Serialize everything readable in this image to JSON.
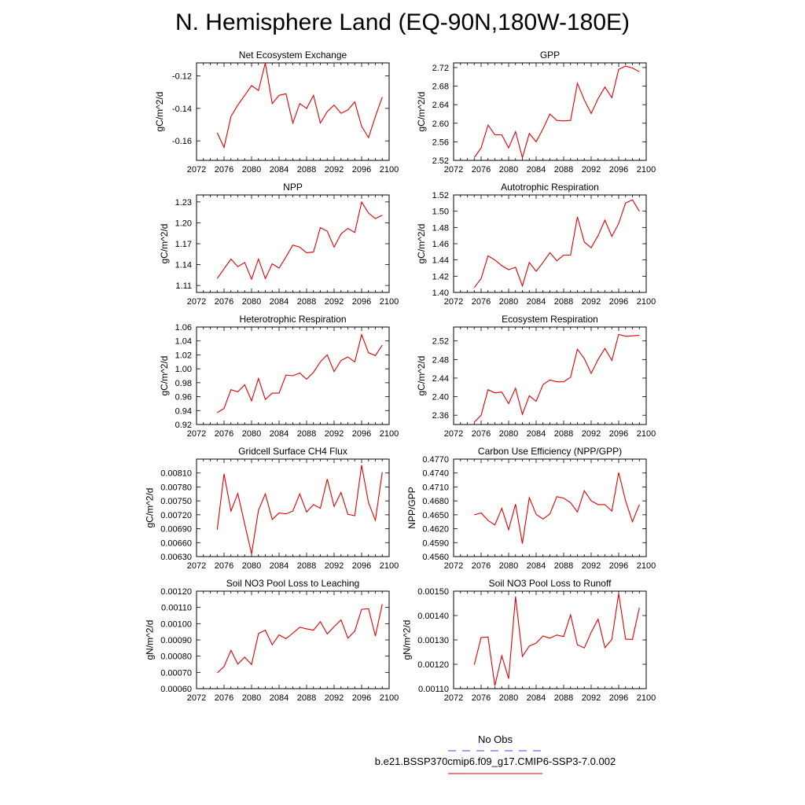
{
  "figure": {
    "title": "N. Hemisphere Land (EQ-90N,180W-180E)"
  },
  "legend": {
    "obs_label": "No Obs",
    "obs_color": "#4444dd",
    "case_label": "b.e21.BSSP370cmip6.f09_g17.CMIP6-SSP3-7.0.002",
    "case_color": "#e00000"
  },
  "chart_data": [
    {
      "type": "line",
      "title": "Net Ecosystem Exchange",
      "ylabel": "gC/m^2/d",
      "xlim": [
        2072,
        2100
      ],
      "xticks": [
        "2072",
        "2076",
        "2080",
        "2084",
        "2088",
        "2092",
        "2096",
        "2100"
      ],
      "ylim": [
        -0.172,
        -0.112
      ],
      "yticks": [
        "-0.12",
        "-0.14",
        "-0.16"
      ],
      "ytick_values": [
        -0.12,
        -0.14,
        -0.16
      ],
      "series": [
        {
          "color": "#e00000",
          "x": [
            2075,
            2076,
            2077,
            2078,
            2079,
            2080,
            2081,
            2082,
            2083,
            2084,
            2085,
            2086,
            2087,
            2088,
            2089,
            2090,
            2091,
            2092,
            2093,
            2094,
            2095,
            2096,
            2097,
            2098,
            2099
          ],
          "y": [
            -0.155,
            -0.164,
            -0.145,
            -0.138,
            -0.132,
            -0.126,
            -0.129,
            -0.112,
            -0.137,
            -0.132,
            -0.131,
            -0.149,
            -0.137,
            -0.14,
            -0.132,
            -0.149,
            -0.142,
            -0.138,
            -0.143,
            -0.141,
            -0.136,
            -0.151,
            -0.158,
            -0.145,
            -0.133
          ]
        }
      ]
    },
    {
      "type": "line",
      "title": "GPP",
      "ylabel": "gC/m^2/d",
      "xlim": [
        2072,
        2100
      ],
      "xticks": [
        "2072",
        "2076",
        "2080",
        "2084",
        "2088",
        "2092",
        "2096",
        "2100"
      ],
      "ylim": [
        2.52,
        2.73
      ],
      "yticks": [
        "2.52",
        "2.56",
        "2.60",
        "2.64",
        "2.68",
        "2.72"
      ],
      "ytick_values": [
        2.52,
        2.56,
        2.6,
        2.64,
        2.68,
        2.72
      ],
      "series": [
        {
          "color": "#e00000",
          "x": [
            2075,
            2076,
            2077,
            2078,
            2079,
            2080,
            2081,
            2082,
            2083,
            2084,
            2085,
            2086,
            2087,
            2088,
            2089,
            2090,
            2091,
            2092,
            2093,
            2094,
            2095,
            2096,
            2097,
            2098,
            2099
          ],
          "y": [
            2.526,
            2.547,
            2.596,
            2.575,
            2.575,
            2.547,
            2.582,
            2.526,
            2.578,
            2.56,
            2.588,
            2.62,
            2.606,
            2.605,
            2.606,
            2.686,
            2.65,
            2.621,
            2.653,
            2.678,
            2.655,
            2.716,
            2.723,
            2.719,
            2.711
          ]
        }
      ]
    },
    {
      "type": "line",
      "title": "NPP",
      "ylabel": "gC/m^2/d",
      "xlim": [
        2072,
        2100
      ],
      "xticks": [
        "2072",
        "2076",
        "2080",
        "2084",
        "2088",
        "2092",
        "2096",
        "2100"
      ],
      "ylim": [
        1.1,
        1.24
      ],
      "yticks": [
        "1.11",
        "1.14",
        "1.17",
        "1.20",
        "1.23"
      ],
      "ytick_values": [
        1.11,
        1.14,
        1.17,
        1.2,
        1.23
      ],
      "series": [
        {
          "color": "#e00000",
          "x": [
            2075,
            2076,
            2077,
            2078,
            2079,
            2080,
            2081,
            2082,
            2083,
            2084,
            2085,
            2086,
            2087,
            2088,
            2089,
            2090,
            2091,
            2092,
            2093,
            2094,
            2095,
            2096,
            2097,
            2098,
            2099
          ],
          "y": [
            1.12,
            1.134,
            1.148,
            1.137,
            1.143,
            1.119,
            1.148,
            1.12,
            1.141,
            1.135,
            1.151,
            1.168,
            1.165,
            1.157,
            1.158,
            1.193,
            1.188,
            1.165,
            1.184,
            1.192,
            1.186,
            1.23,
            1.214,
            1.206,
            1.211
          ]
        }
      ]
    },
    {
      "type": "line",
      "title": "Autotrophic Respiration",
      "ylabel": "gC/m^2/d",
      "xlim": [
        2072,
        2100
      ],
      "xticks": [
        "2072",
        "2076",
        "2080",
        "2084",
        "2088",
        "2092",
        "2096",
        "2100"
      ],
      "ylim": [
        1.4,
        1.52
      ],
      "yticks": [
        "1.40",
        "1.42",
        "1.44",
        "1.46",
        "1.48",
        "1.50",
        "1.52"
      ],
      "ytick_values": [
        1.4,
        1.42,
        1.44,
        1.46,
        1.48,
        1.5,
        1.52
      ],
      "series": [
        {
          "color": "#e00000",
          "x": [
            2075,
            2076,
            2077,
            2078,
            2079,
            2080,
            2081,
            2082,
            2083,
            2084,
            2085,
            2086,
            2087,
            2088,
            2089,
            2090,
            2091,
            2092,
            2093,
            2094,
            2095,
            2096,
            2097,
            2098,
            2099
          ],
          "y": [
            1.406,
            1.417,
            1.445,
            1.44,
            1.433,
            1.428,
            1.431,
            1.408,
            1.437,
            1.426,
            1.437,
            1.449,
            1.439,
            1.446,
            1.446,
            1.493,
            1.462,
            1.455,
            1.47,
            1.489,
            1.469,
            1.485,
            1.51,
            1.514,
            1.5
          ]
        }
      ]
    },
    {
      "type": "line",
      "title": "Heterotrophic Respiration",
      "ylabel": "gC/m^2/d",
      "xlim": [
        2072,
        2100
      ],
      "xticks": [
        "2072",
        "2076",
        "2080",
        "2084",
        "2088",
        "2092",
        "2096",
        "2100"
      ],
      "ylim": [
        0.92,
        1.06
      ],
      "yticks": [
        "0.92",
        "0.94",
        "0.96",
        "0.98",
        "1.00",
        "1.02",
        "1.04",
        "1.06"
      ],
      "ytick_values": [
        0.92,
        0.94,
        0.96,
        0.98,
        1.0,
        1.02,
        1.04,
        1.06
      ],
      "series": [
        {
          "color": "#e00000",
          "x": [
            2075,
            2076,
            2077,
            2078,
            2079,
            2080,
            2081,
            2082,
            2083,
            2084,
            2085,
            2086,
            2087,
            2088,
            2089,
            2090,
            2091,
            2092,
            2093,
            2094,
            2095,
            2096,
            2097,
            2098,
            2099
          ],
          "y": [
            0.937,
            0.943,
            0.97,
            0.967,
            0.977,
            0.954,
            0.986,
            0.956,
            0.965,
            0.965,
            0.991,
            0.99,
            0.994,
            0.985,
            0.995,
            1.01,
            1.02,
            0.996,
            1.012,
            1.017,
            1.01,
            1.049,
            1.023,
            1.019,
            1.034
          ]
        }
      ]
    },
    {
      "type": "line",
      "title": "Ecosystem Respiration",
      "ylabel": "gC/m^2/d",
      "xlim": [
        2072,
        2100
      ],
      "xticks": [
        "2072",
        "2076",
        "2080",
        "2084",
        "2088",
        "2092",
        "2096",
        "2100"
      ],
      "ylim": [
        2.34,
        2.55
      ],
      "yticks": [
        "2.36",
        "2.40",
        "2.44",
        "2.48",
        "2.52"
      ],
      "ytick_values": [
        2.36,
        2.4,
        2.44,
        2.48,
        2.52
      ],
      "series": [
        {
          "color": "#e00000",
          "x": [
            2075,
            2076,
            2077,
            2078,
            2079,
            2080,
            2081,
            2082,
            2083,
            2084,
            2085,
            2086,
            2087,
            2088,
            2089,
            2090,
            2091,
            2092,
            2093,
            2094,
            2095,
            2096,
            2097,
            2098,
            2099
          ],
          "y": [
            2.345,
            2.36,
            2.415,
            2.408,
            2.41,
            2.385,
            2.418,
            2.362,
            2.402,
            2.39,
            2.426,
            2.436,
            2.432,
            2.432,
            2.442,
            2.502,
            2.482,
            2.45,
            2.48,
            2.504,
            2.478,
            2.534,
            2.53,
            2.531,
            2.532
          ]
        }
      ]
    },
    {
      "type": "line",
      "title": "Gridcell Surface CH4 Flux",
      "ylabel": "gC/m^2/d",
      "xlim": [
        2072,
        2100
      ],
      "xticks": [
        "2072",
        "2076",
        "2080",
        "2084",
        "2088",
        "2092",
        "2096",
        "2100"
      ],
      "ylim": [
        0.0063,
        0.0084
      ],
      "yticks": [
        "0.00630",
        "0.00660",
        "0.00690",
        "0.00720",
        "0.00750",
        "0.00780",
        "0.00810"
      ],
      "ytick_values": [
        0.0063,
        0.0066,
        0.0069,
        0.0072,
        0.0075,
        0.0078,
        0.0081
      ],
      "series": [
        {
          "color": "#e00000",
          "x": [
            2075,
            2076,
            2077,
            2078,
            2079,
            2080,
            2081,
            2082,
            2083,
            2084,
            2085,
            2086,
            2087,
            2088,
            2089,
            2090,
            2091,
            2092,
            2093,
            2094,
            2095,
            2096,
            2097,
            2098,
            2099
          ],
          "y": [
            0.00688,
            0.00808,
            0.00728,
            0.00766,
            0.007,
            0.00636,
            0.0073,
            0.00765,
            0.0071,
            0.00724,
            0.00722,
            0.00728,
            0.00765,
            0.00726,
            0.00742,
            0.00734,
            0.00797,
            0.00738,
            0.00768,
            0.00721,
            0.00718,
            0.00827,
            0.00746,
            0.00708,
            0.00812
          ]
        }
      ]
    },
    {
      "type": "line",
      "title": "Carbon Use Efficiency (NPP/GPP)",
      "ylabel": "NPP/GPP",
      "xlim": [
        2072,
        2100
      ],
      "xticks": [
        "2072",
        "2076",
        "2080",
        "2084",
        "2088",
        "2092",
        "2096",
        "2100"
      ],
      "ylim": [
        0.456,
        0.477
      ],
      "yticks": [
        "0.4560",
        "0.4590",
        "0.4620",
        "0.4650",
        "0.4680",
        "0.4710",
        "0.4740",
        "0.4770"
      ],
      "ytick_values": [
        0.456,
        0.459,
        0.462,
        0.465,
        0.468,
        0.471,
        0.474,
        0.477
      ],
      "series": [
        {
          "color": "#e00000",
          "x": [
            2075,
            2076,
            2077,
            2078,
            2079,
            2080,
            2081,
            2082,
            2083,
            2084,
            2085,
            2086,
            2087,
            2088,
            2089,
            2090,
            2091,
            2092,
            2093,
            2094,
            2095,
            2096,
            2097,
            2098,
            2099
          ],
          "y": [
            0.465,
            0.4654,
            0.4638,
            0.4628,
            0.4664,
            0.4618,
            0.4673,
            0.4588,
            0.4687,
            0.4651,
            0.4641,
            0.4652,
            0.4689,
            0.4686,
            0.4676,
            0.4656,
            0.4702,
            0.468,
            0.4672,
            0.4672,
            0.4658,
            0.4741,
            0.468,
            0.4635,
            0.4672
          ]
        }
      ]
    },
    {
      "type": "line",
      "title": "Soil NO3 Pool Loss to Leaching",
      "ylabel": "gN/m^2/d",
      "xlim": [
        2072,
        2100
      ],
      "xticks": [
        "2072",
        "2076",
        "2080",
        "2084",
        "2088",
        "2092",
        "2096",
        "2100"
      ],
      "ylim": [
        0.0006,
        0.0012
      ],
      "yticks": [
        "0.00060",
        "0.00070",
        "0.00080",
        "0.00090",
        "0.00100",
        "0.00110",
        "0.00120"
      ],
      "ytick_values": [
        0.0006,
        0.0007,
        0.0008,
        0.0009,
        0.001,
        0.0011,
        0.0012
      ],
      "series": [
        {
          "color": "#e00000",
          "x": [
            2075,
            2076,
            2077,
            2078,
            2079,
            2080,
            2081,
            2082,
            2083,
            2084,
            2085,
            2086,
            2087,
            2088,
            2089,
            2090,
            2091,
            2092,
            2093,
            2094,
            2095,
            2096,
            2097,
            2098,
            2099
          ],
          "y": [
            0.000697,
            0.000736,
            0.000836,
            0.000751,
            0.000794,
            0.000748,
            0.000939,
            0.00096,
            0.00087,
            0.000931,
            0.000908,
            0.000941,
            0.000978,
            0.000968,
            0.00096,
            0.001012,
            0.000937,
            0.000982,
            0.001023,
            0.000911,
            0.000954,
            0.001088,
            0.001092,
            0.000924,
            0.00112
          ]
        }
      ]
    },
    {
      "type": "line",
      "title": "Soil NO3 Pool Loss to Runoff",
      "ylabel": "gN/m^2/d",
      "xlim": [
        2072,
        2100
      ],
      "xticks": [
        "2072",
        "2076",
        "2080",
        "2084",
        "2088",
        "2092",
        "2096",
        "2100"
      ],
      "ylim": [
        0.0011,
        0.0015
      ],
      "yticks": [
        "0.00110",
        "0.00120",
        "0.00130",
        "0.00140",
        "0.00150"
      ],
      "ytick_values": [
        0.0011,
        0.0012,
        0.0013,
        0.0014,
        0.0015
      ],
      "series": [
        {
          "color": "#e00000",
          "x": [
            2075,
            2076,
            2077,
            2078,
            2079,
            2080,
            2081,
            2082,
            2083,
            2084,
            2085,
            2086,
            2087,
            2088,
            2089,
            2090,
            2091,
            2092,
            2093,
            2094,
            2095,
            2096,
            2097,
            2098,
            2099
          ],
          "y": [
            0.001198,
            0.00131,
            0.001312,
            0.001112,
            0.001235,
            0.001141,
            0.001478,
            0.001232,
            0.001275,
            0.001287,
            0.001316,
            0.001307,
            0.00132,
            0.001314,
            0.001403,
            0.00128,
            0.001267,
            0.001331,
            0.001385,
            0.001268,
            0.001302,
            0.00149,
            0.001303,
            0.001302,
            0.001432
          ]
        }
      ]
    }
  ]
}
